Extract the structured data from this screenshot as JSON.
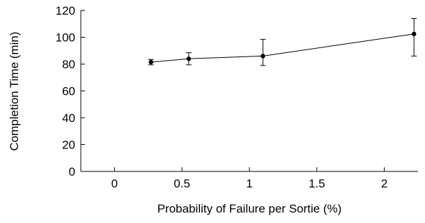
{
  "chart_data": {
    "type": "line",
    "title": "",
    "xlabel": "Probability of Failure per Sortie (%)",
    "ylabel": "Completion Time (min)",
    "xlim": [
      -0.25,
      2.25
    ],
    "ylim": [
      0,
      120
    ],
    "xticks": [
      0,
      0.5,
      1,
      1.5,
      2
    ],
    "xtick_labels": [
      "0",
      "0.5",
      "1",
      "1.5",
      "2"
    ],
    "yticks": [
      0,
      20,
      40,
      60,
      80,
      100,
      120
    ],
    "ytick_labels": [
      "0",
      "20",
      "40",
      "60",
      "80",
      "100",
      "120"
    ],
    "grid": false,
    "legend": "none",
    "series": [
      {
        "x": [
          0.27,
          0.55,
          1.1,
          2.22
        ],
        "y": [
          81.5,
          84,
          86,
          102.5
        ],
        "y_err_low": [
          79.5,
          79.5,
          79,
          86
        ],
        "y_err_high": [
          83.5,
          88.5,
          98.5,
          114
        ],
        "color": "#000000",
        "marker": "circle"
      }
    ]
  }
}
